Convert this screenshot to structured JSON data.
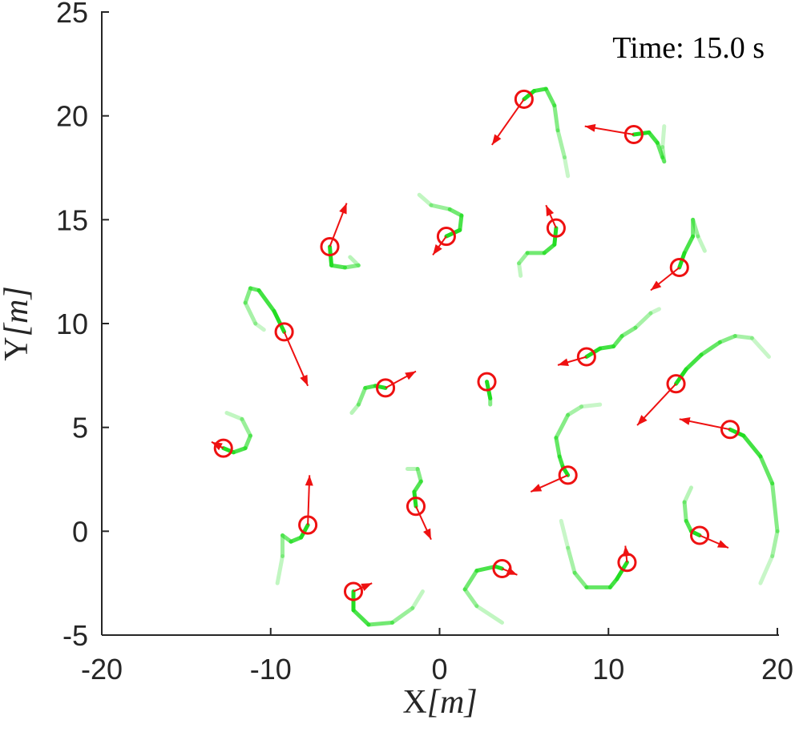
{
  "chart_data": {
    "type": "scatter",
    "title": "",
    "annotation": "Time:  15.0 s",
    "xlabel": {
      "main": "X",
      "unit": "[m]"
    },
    "ylabel": {
      "main": "Y",
      "unit": "[m]"
    },
    "xlim": [
      -20,
      20
    ],
    "ylim": [
      -5,
      25
    ],
    "xticks": [
      -20,
      -10,
      0,
      10,
      20
    ],
    "yticks": [
      -5,
      0,
      5,
      10,
      15,
      20,
      25
    ],
    "xtick_labels": [
      "-20",
      "-10",
      "0",
      "10",
      "20"
    ],
    "ytick_labels": [
      "-5",
      "0",
      "5",
      "10",
      "15",
      "20",
      "25"
    ],
    "grid": false,
    "box": "left-bottom axes only",
    "colors": {
      "agent": "#ee1111",
      "trail": "#22dd22",
      "axis": "#262626"
    },
    "agent_radius_m": 0.5,
    "agents": [
      {
        "pos": [
          5.0,
          20.8
        ],
        "heading": [
          -1.9,
          -2.2
        ],
        "trail": [
          [
            5.0,
            20.8
          ],
          [
            5.6,
            21.2
          ],
          [
            6.3,
            21.3
          ],
          [
            6.8,
            20.5
          ],
          [
            7.0,
            19.3
          ],
          [
            7.4,
            18.0
          ],
          [
            7.6,
            17.1
          ]
        ]
      },
      {
        "pos": [
          11.5,
          19.1
        ],
        "heading": [
          -2.9,
          0.4
        ],
        "trail": [
          [
            11.5,
            19.1
          ],
          [
            12.4,
            19.2
          ],
          [
            12.9,
            18.7
          ],
          [
            13.2,
            18.0
          ],
          [
            13.3,
            17.8
          ],
          [
            13.2,
            18.5
          ],
          [
            13.3,
            19.5
          ]
        ]
      },
      {
        "pos": [
          -6.5,
          13.7
        ],
        "heading": [
          1.0,
          2.1
        ],
        "trail": [
          [
            -6.5,
            13.7
          ],
          [
            -6.4,
            12.8
          ],
          [
            -5.6,
            12.7
          ],
          [
            -4.8,
            12.8
          ],
          [
            -5.3,
            13.2
          ]
        ]
      },
      {
        "pos": [
          0.4,
          14.2
        ],
        "heading": [
          -0.8,
          -0.9
        ],
        "trail": [
          [
            0.4,
            14.2
          ],
          [
            1.2,
            14.5
          ],
          [
            1.3,
            15.2
          ],
          [
            0.6,
            15.5
          ],
          [
            -0.5,
            15.7
          ],
          [
            -1.2,
            16.2
          ]
        ]
      },
      {
        "pos": [
          6.9,
          14.6
        ],
        "heading": [
          -0.6,
          1.1
        ],
        "trail": [
          [
            6.9,
            14.6
          ],
          [
            6.8,
            13.8
          ],
          [
            6.2,
            13.4
          ],
          [
            5.2,
            13.4
          ],
          [
            4.7,
            12.9
          ],
          [
            4.8,
            12.3
          ]
        ]
      },
      {
        "pos": [
          14.2,
          12.7
        ],
        "heading": [
          -1.7,
          -1.1
        ],
        "trail": [
          [
            14.2,
            12.7
          ],
          [
            14.5,
            13.4
          ],
          [
            15.0,
            14.2
          ],
          [
            15.0,
            15.0
          ],
          [
            15.3,
            14.2
          ],
          [
            15.7,
            13.5
          ]
        ]
      },
      {
        "pos": [
          -9.2,
          9.6
        ],
        "heading": [
          1.4,
          -2.6
        ],
        "trail": [
          [
            -9.2,
            9.6
          ],
          [
            -9.8,
            10.6
          ],
          [
            -10.7,
            11.6
          ],
          [
            -11.2,
            11.7
          ],
          [
            -11.5,
            11.0
          ],
          [
            -10.9,
            10.0
          ],
          [
            -10.4,
            9.7
          ]
        ]
      },
      {
        "pos": [
          8.7,
          8.4
        ],
        "heading": [
          -1.7,
          -0.4
        ],
        "trail": [
          [
            8.7,
            8.4
          ],
          [
            9.5,
            8.8
          ],
          [
            10.3,
            8.9
          ],
          [
            10.8,
            9.4
          ],
          [
            11.6,
            9.8
          ],
          [
            12.5,
            10.5
          ],
          [
            13.0,
            10.7
          ]
        ]
      },
      {
        "pos": [
          -3.2,
          6.9
        ],
        "heading": [
          1.8,
          0.8
        ],
        "trail": [
          [
            -3.2,
            6.9
          ],
          [
            -3.8,
            7.0
          ],
          [
            -4.4,
            6.9
          ],
          [
            -4.8,
            6.1
          ],
          [
            -5.2,
            5.7
          ]
        ]
      },
      {
        "pos": [
          2.8,
          7.2
        ],
        "heading": [
          0,
          0
        ],
        "trail": [
          [
            2.8,
            7.2
          ],
          [
            3.0,
            6.4
          ],
          [
            3.0,
            6.1
          ]
        ]
      },
      {
        "pos": [
          14.0,
          7.1
        ],
        "heading": [
          -2.3,
          -2.0
        ],
        "trail": [
          [
            14.0,
            7.1
          ],
          [
            14.6,
            7.8
          ],
          [
            15.5,
            8.5
          ],
          [
            16.6,
            9.1
          ],
          [
            17.5,
            9.4
          ],
          [
            18.5,
            9.3
          ],
          [
            19.5,
            8.4
          ]
        ]
      },
      {
        "pos": [
          17.2,
          4.9
        ],
        "heading": [
          -3.0,
          0.5
        ],
        "trail": [
          [
            17.2,
            4.9
          ],
          [
            18.0,
            4.6
          ],
          [
            19.0,
            3.6
          ],
          [
            19.7,
            2.3
          ],
          [
            20.0,
            0.0
          ],
          [
            19.7,
            -1.2
          ],
          [
            19.0,
            -2.5
          ]
        ]
      },
      {
        "pos": [
          -12.8,
          4.0
        ],
        "heading": [
          -0.7,
          0.3
        ],
        "trail": [
          [
            -12.8,
            4.0
          ],
          [
            -12.2,
            3.8
          ],
          [
            -11.5,
            4.0
          ],
          [
            -11.2,
            4.6
          ],
          [
            -11.7,
            5.4
          ],
          [
            -12.6,
            5.7
          ]
        ]
      },
      {
        "pos": [
          7.6,
          2.7
        ],
        "heading": [
          -2.2,
          -0.8
        ],
        "trail": [
          [
            7.6,
            2.7
          ],
          [
            7.3,
            3.1
          ],
          [
            7.1,
            3.6
          ],
          [
            6.9,
            4.5
          ],
          [
            7.6,
            5.6
          ],
          [
            8.4,
            6.0
          ],
          [
            9.5,
            6.1
          ]
        ]
      },
      {
        "pos": [
          -7.8,
          0.3
        ],
        "heading": [
          0.1,
          2.4
        ],
        "trail": [
          [
            -7.8,
            0.3
          ],
          [
            -8.2,
            -0.3
          ],
          [
            -8.8,
            -0.5
          ],
          [
            -9.3,
            -0.2
          ],
          [
            -9.3,
            -1.2
          ],
          [
            -9.6,
            -2.5
          ]
        ]
      },
      {
        "pos": [
          -1.4,
          1.2
        ],
        "heading": [
          0.9,
          -1.6
        ],
        "trail": [
          [
            -1.4,
            1.2
          ],
          [
            -1.5,
            1.9
          ],
          [
            -1.1,
            2.4
          ],
          [
            -1.3,
            3.0
          ],
          [
            -1.9,
            3.0
          ]
        ]
      },
      {
        "pos": [
          15.4,
          -0.2
        ],
        "heading": [
          1.7,
          -0.6
        ],
        "trail": [
          [
            15.4,
            -0.2
          ],
          [
            14.9,
            0.0
          ],
          [
            14.6,
            0.5
          ],
          [
            14.5,
            1.4
          ],
          [
            14.9,
            2.1
          ]
        ]
      },
      {
        "pos": [
          -5.1,
          -2.9
        ],
        "heading": [
          1.1,
          0.4
        ],
        "trail": [
          [
            -5.1,
            -2.9
          ],
          [
            -5.1,
            -3.8
          ],
          [
            -4.2,
            -4.5
          ],
          [
            -2.8,
            -4.4
          ],
          [
            -1.6,
            -3.7
          ],
          [
            -1.0,
            -2.9
          ]
        ]
      },
      {
        "pos": [
          3.7,
          -1.8
        ],
        "heading": [
          0.9,
          -0.3
        ],
        "trail": [
          [
            3.7,
            -1.8
          ],
          [
            3.3,
            -1.7
          ],
          [
            2.2,
            -1.9
          ],
          [
            1.5,
            -2.8
          ],
          [
            2.2,
            -3.6
          ],
          [
            3.7,
            -4.4
          ]
        ]
      },
      {
        "pos": [
          11.1,
          -1.5
        ],
        "heading": [
          -0.1,
          0.8
        ],
        "trail": [
          [
            11.1,
            -1.5
          ],
          [
            10.5,
            -2.3
          ],
          [
            10.1,
            -2.7
          ],
          [
            8.7,
            -2.7
          ],
          [
            8.0,
            -2.0
          ],
          [
            7.6,
            -0.8
          ],
          [
            7.2,
            0.5
          ]
        ]
      }
    ]
  }
}
